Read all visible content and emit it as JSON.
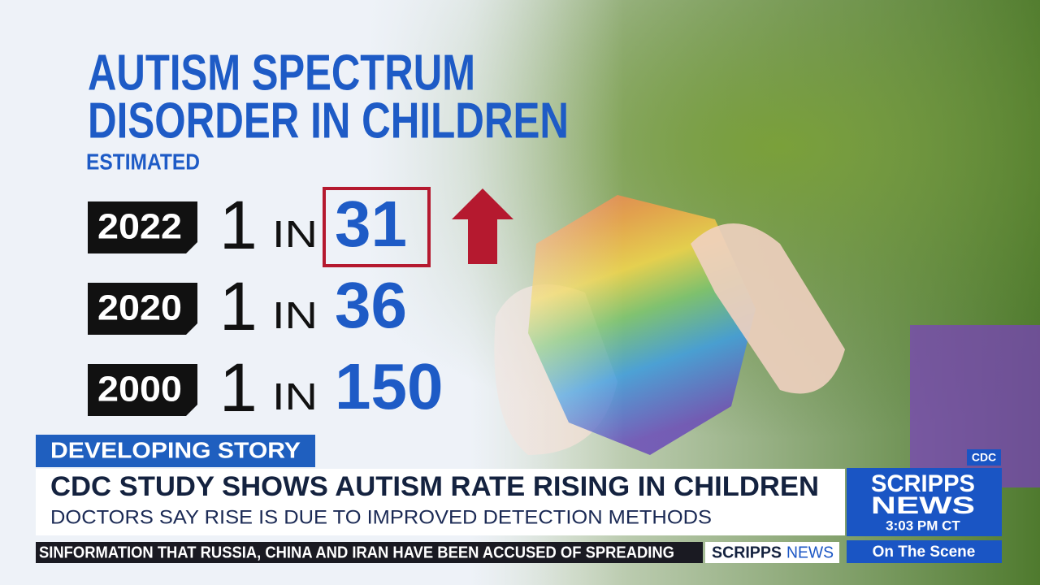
{
  "graphic": {
    "title_lines": [
      "AUTISM SPECTRUM",
      "DISORDER IN CHILDREN"
    ],
    "subtitle": "ESTIMATED",
    "rows": [
      {
        "year": 2022,
        "one": 1,
        "in": "IN",
        "rate": 31
      },
      {
        "year": 2020,
        "one": 1,
        "in": "IN",
        "rate": 36
      },
      {
        "year": 2000,
        "one": 1,
        "in": "IN",
        "rate": 150
      }
    ]
  },
  "lower_third": {
    "tag": "DEVELOPING STORY",
    "headline": "CDC STUDY SHOWS AUTISM RATE RISING IN CHILDREN",
    "subhead": "DOCTORS SAY RISE IS DUE TO IMPROVED DETECTION METHODS",
    "source": "CDC"
  },
  "ticker": {
    "text": "SINFORMATION THAT RUSSIA, CHINA AND IRAN HAVE BEEN ACCUSED OF SPREADING",
    "brand_bold": "SCRIPPS",
    "brand_light": "NEWS"
  },
  "bug": {
    "brand_line1": "SCRIPPS",
    "brand_line2": "NEWS",
    "time": "3:03 PM CT",
    "program": "On The Scene"
  }
}
